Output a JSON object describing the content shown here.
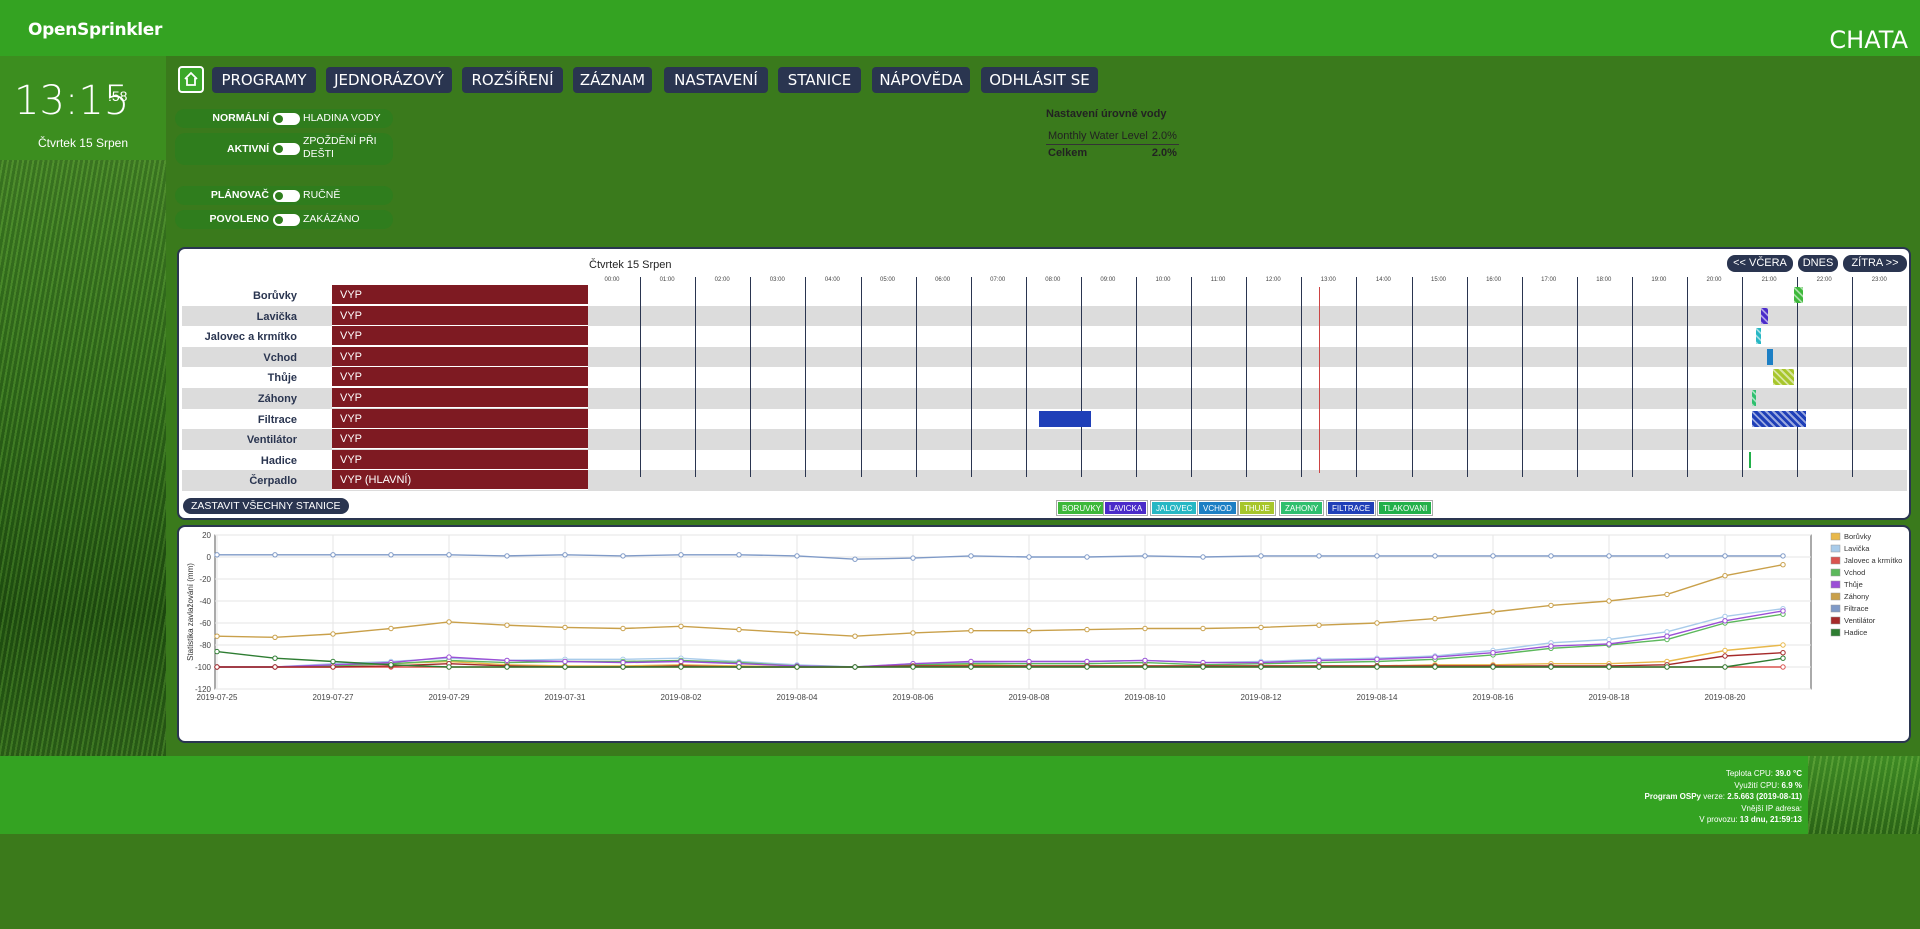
{
  "header": {
    "logo": "OpenSprinkler",
    "site_name": "CHATA"
  },
  "clock": {
    "time": "13:15",
    "seconds": ":58",
    "date": "Čtvrtek 15 Srpen"
  },
  "nav": {
    "items": [
      "PROGRAMY",
      "JEDNORÁZOVÝ",
      "ROZŠÍŘENÍ",
      "ZÁZNAM",
      "NASTAVENÍ",
      "STANICE",
      "NÁPOVĚDA",
      "ODHLÁSIT SE"
    ]
  },
  "toggles": [
    {
      "on": "NORMÁLNÍ",
      "off": "HLADINA VODY"
    },
    {
      "on": "AKTIVNÍ",
      "off": "ZPOŽDĚNÍ PŘI DEŠTI"
    },
    {
      "on": "PLÁNOVAČ",
      "off": "RUČNĚ"
    },
    {
      "on": "POVOLENO",
      "off": "ZAKÁZÁNO"
    }
  ],
  "water": {
    "title": "Nastavení úrovně vody",
    "rows": [
      {
        "label": "Monthly Water Level",
        "value": "2.0%"
      }
    ],
    "total": {
      "label": "Celkem",
      "value": "2.0%"
    }
  },
  "timeline": {
    "date": "Čtvrtek 15 Srpen",
    "nav": {
      "prev": "<< VČERA",
      "today": "DNES",
      "next": "ZÍTRA >>"
    },
    "hours": [
      "00:00",
      "01:00",
      "02:00",
      "03:00",
      "04:00",
      "05:00",
      "06:00",
      "07:00",
      "08:00",
      "09:00",
      "10:00",
      "11:00",
      "12:00",
      "13:00",
      "14:00",
      "15:00",
      "16:00",
      "17:00",
      "18:00",
      "19:00",
      "20:00",
      "21:00",
      "22:00",
      "23:00"
    ],
    "stations": [
      {
        "name": "Borůvky",
        "state": "VYP"
      },
      {
        "name": "Lavička",
        "state": "VYP"
      },
      {
        "name": "Jalovec a krmítko",
        "state": "VYP"
      },
      {
        "name": "Vchod",
        "state": "VYP"
      },
      {
        "name": "Thůje",
        "state": "VYP"
      },
      {
        "name": "Záhony",
        "state": "VYP"
      },
      {
        "name": "Filtrace",
        "state": "VYP"
      },
      {
        "name": "Ventilátor",
        "state": "VYP"
      },
      {
        "name": "Hadice",
        "state": "VYP"
      },
      {
        "name": "Čerpadlo",
        "state": "VYP (HLAVNÍ)"
      }
    ],
    "stop_all": "ZASTAVIT VŠECHNY STANICE",
    "programs": [
      {
        "name": "BORUVKY",
        "color": "#3db83a"
      },
      {
        "name": "LAVICKA",
        "color": "#4a2bc9"
      },
      {
        "name": "JALOVEC",
        "color": "#27b7c4"
      },
      {
        "name": "VCHOD",
        "color": "#1d7fc4"
      },
      {
        "name": "THUJE",
        "color": "#a7c62b"
      },
      {
        "name": "ZAHONY",
        "color": "#2fbf6e"
      },
      {
        "name": "FILTRACE",
        "color": "#1f3fb8"
      },
      {
        "name": "TLAKOVANI",
        "color": "#22b04a"
      }
    ]
  },
  "chart_data": {
    "type": "line",
    "ylabel": "Statistika zavlažování (mm)",
    "ylim": [
      -120,
      20
    ],
    "yticks": [
      20,
      0,
      -20,
      -40,
      -60,
      -80,
      -100,
      -120
    ],
    "x": [
      "2019-07-25",
      "2019-07-26",
      "2019-07-27",
      "2019-07-28",
      "2019-07-29",
      "2019-07-30",
      "2019-07-31",
      "2019-08-01",
      "2019-08-02",
      "2019-08-03",
      "2019-08-04",
      "2019-08-05",
      "2019-08-06",
      "2019-08-07",
      "2019-08-08",
      "2019-08-09",
      "2019-08-10",
      "2019-08-11",
      "2019-08-12",
      "2019-08-13",
      "2019-08-14",
      "2019-08-15",
      "2019-08-16",
      "2019-08-17",
      "2019-08-18",
      "2019-08-19",
      "2019-08-20",
      "2019-08-21"
    ],
    "xticks": [
      "2019-07-25",
      "2019-07-27",
      "2019-07-29",
      "2019-07-31",
      "2019-08-02",
      "2019-08-04",
      "2019-08-06",
      "2019-08-08",
      "2019-08-10",
      "2019-08-12",
      "2019-08-14",
      "2019-08-16",
      "2019-08-18",
      "2019-08-20"
    ],
    "series": [
      {
        "name": "Borůvky",
        "color": "#e8b84a",
        "values": [
          -100,
          -100,
          -98,
          -97,
          -95,
          -98,
          -99,
          -99,
          -98,
          -99,
          -100,
          -100,
          -99,
          -98,
          -99,
          -99,
          -99,
          -99,
          -99,
          -99,
          -99,
          -98,
          -98,
          -97,
          -97,
          -95,
          -85,
          -80
        ]
      },
      {
        "name": "Lavička",
        "color": "#a8cbea",
        "values": [
          -100,
          -100,
          -97,
          -95,
          -92,
          -94,
          -93,
          -93,
          -92,
          -95,
          -98,
          -100,
          -97,
          -96,
          -95,
          -95,
          -94,
          -96,
          -95,
          -93,
          -92,
          -90,
          -85,
          -78,
          -75,
          -68,
          -54,
          -47
        ]
      },
      {
        "name": "Jalovec a krmítko",
        "color": "#d9534f",
        "values": [
          -100,
          -100,
          -100,
          -100,
          -100,
          -100,
          -100,
          -100,
          -100,
          -100,
          -100,
          -100,
          -100,
          -100,
          -100,
          -100,
          -100,
          -100,
          -100,
          -100,
          -100,
          -100,
          -100,
          -100,
          -100,
          -100,
          -100,
          -100
        ]
      },
      {
        "name": "Vchod",
        "color": "#5cb85c",
        "values": [
          -100,
          -100,
          -99,
          -97,
          -94,
          -96,
          -95,
          -95,
          -94,
          -96,
          -99,
          -100,
          -98,
          -97,
          -97,
          -97,
          -96,
          -98,
          -97,
          -96,
          -95,
          -93,
          -89,
          -83,
          -80,
          -75,
          -60,
          -52
        ]
      },
      {
        "name": "Thůje",
        "color": "#9b4fd6",
        "values": [
          -100,
          -100,
          -98,
          -96,
          -91,
          -94,
          -95,
          -96,
          -95,
          -97,
          -99,
          -100,
          -97,
          -95,
          -95,
          -95,
          -94,
          -96,
          -96,
          -94,
          -93,
          -91,
          -87,
          -81,
          -79,
          -72,
          -58,
          -49
        ]
      },
      {
        "name": "Záhony",
        "color": "#c9a04a",
        "values": [
          -72,
          -73,
          -70,
          -65,
          -59,
          -62,
          -64,
          -65,
          -63,
          -66,
          -69,
          -72,
          -69,
          -67,
          -67,
          -66,
          -65,
          -65,
          -64,
          -62,
          -60,
          -56,
          -50,
          -44,
          -40,
          -34,
          -17,
          -7
        ]
      },
      {
        "name": "Filtrace",
        "color": "#7f9ac7",
        "values": [
          2,
          2,
          2,
          2,
          2,
          1,
          2,
          1,
          2,
          2,
          1,
          -2,
          -1,
          1,
          0,
          0,
          1,
          0,
          1,
          1,
          1,
          1,
          1,
          1,
          1,
          1,
          1,
          1
        ]
      },
      {
        "name": "Ventilátor",
        "color": "#a52a2a",
        "values": [
          -100,
          -100,
          -100,
          -99,
          -97,
          -99,
          -100,
          -100,
          -99,
          -100,
          -100,
          -100,
          -99,
          -99,
          -99,
          -99,
          -99,
          -99,
          -99,
          -99,
          -99,
          -99,
          -99,
          -99,
          -99,
          -98,
          -90,
          -87
        ]
      },
      {
        "name": "Hadice",
        "color": "#2e7d32",
        "values": [
          -86,
          -92,
          -95,
          -98,
          -100,
          -100,
          -100,
          -100,
          -100,
          -100,
          -100,
          -100,
          -100,
          -100,
          -100,
          -100,
          -100,
          -100,
          -100,
          -100,
          -100,
          -100,
          -100,
          -100,
          -100,
          -100,
          -100,
          -92
        ]
      }
    ],
    "legend_position": "right"
  },
  "footer": {
    "cpu_temp_label": "Teplota CPU:",
    "cpu_temp": "39.0 °C",
    "cpu_usage_label": "Využití CPU:",
    "cpu_usage": "6.9 %",
    "program_label": "Program OSPy",
    "version_label": "verze:",
    "version": "2.5.663 (2019-08-11)",
    "ip_label": "Vnější IP adresa:",
    "uptime_label": "V provozu:",
    "uptime": "13 dnu, 21:59:13"
  }
}
